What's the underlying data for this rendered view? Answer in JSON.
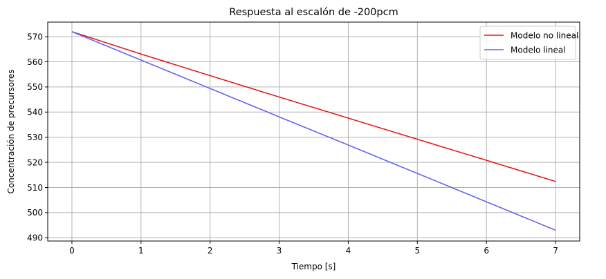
{
  "chart_data": {
    "type": "line",
    "title": "Respuesta al escalón de -200pcm",
    "xlabel": "Tiempo [s]",
    "ylabel": "Concentración de precursores",
    "xlim": [
      -0.35,
      7.35
    ],
    "ylim": [
      488.7,
      575.8
    ],
    "xticks": [
      0,
      1,
      2,
      3,
      4,
      5,
      6,
      7
    ],
    "yticks": [
      490,
      500,
      510,
      520,
      530,
      540,
      550,
      560,
      570
    ],
    "grid": true,
    "legend_position": "top-right",
    "series": [
      {
        "name": "Modelo no lineal",
        "color": "#e41a1c",
        "x": [
          0,
          1,
          2,
          3,
          4,
          5,
          6,
          7
        ],
        "y": [
          572.0,
          563.1,
          554.5,
          546.0,
          537.6,
          529.2,
          520.8,
          512.4
        ]
      },
      {
        "name": "Modelo lineal",
        "color": "#6464f0",
        "x": [
          0,
          1,
          2,
          3,
          4,
          5,
          6,
          7
        ],
        "y": [
          572.0,
          560.7,
          549.4,
          538.1,
          526.9,
          515.6,
          504.3,
          493.0
        ]
      }
    ]
  }
}
